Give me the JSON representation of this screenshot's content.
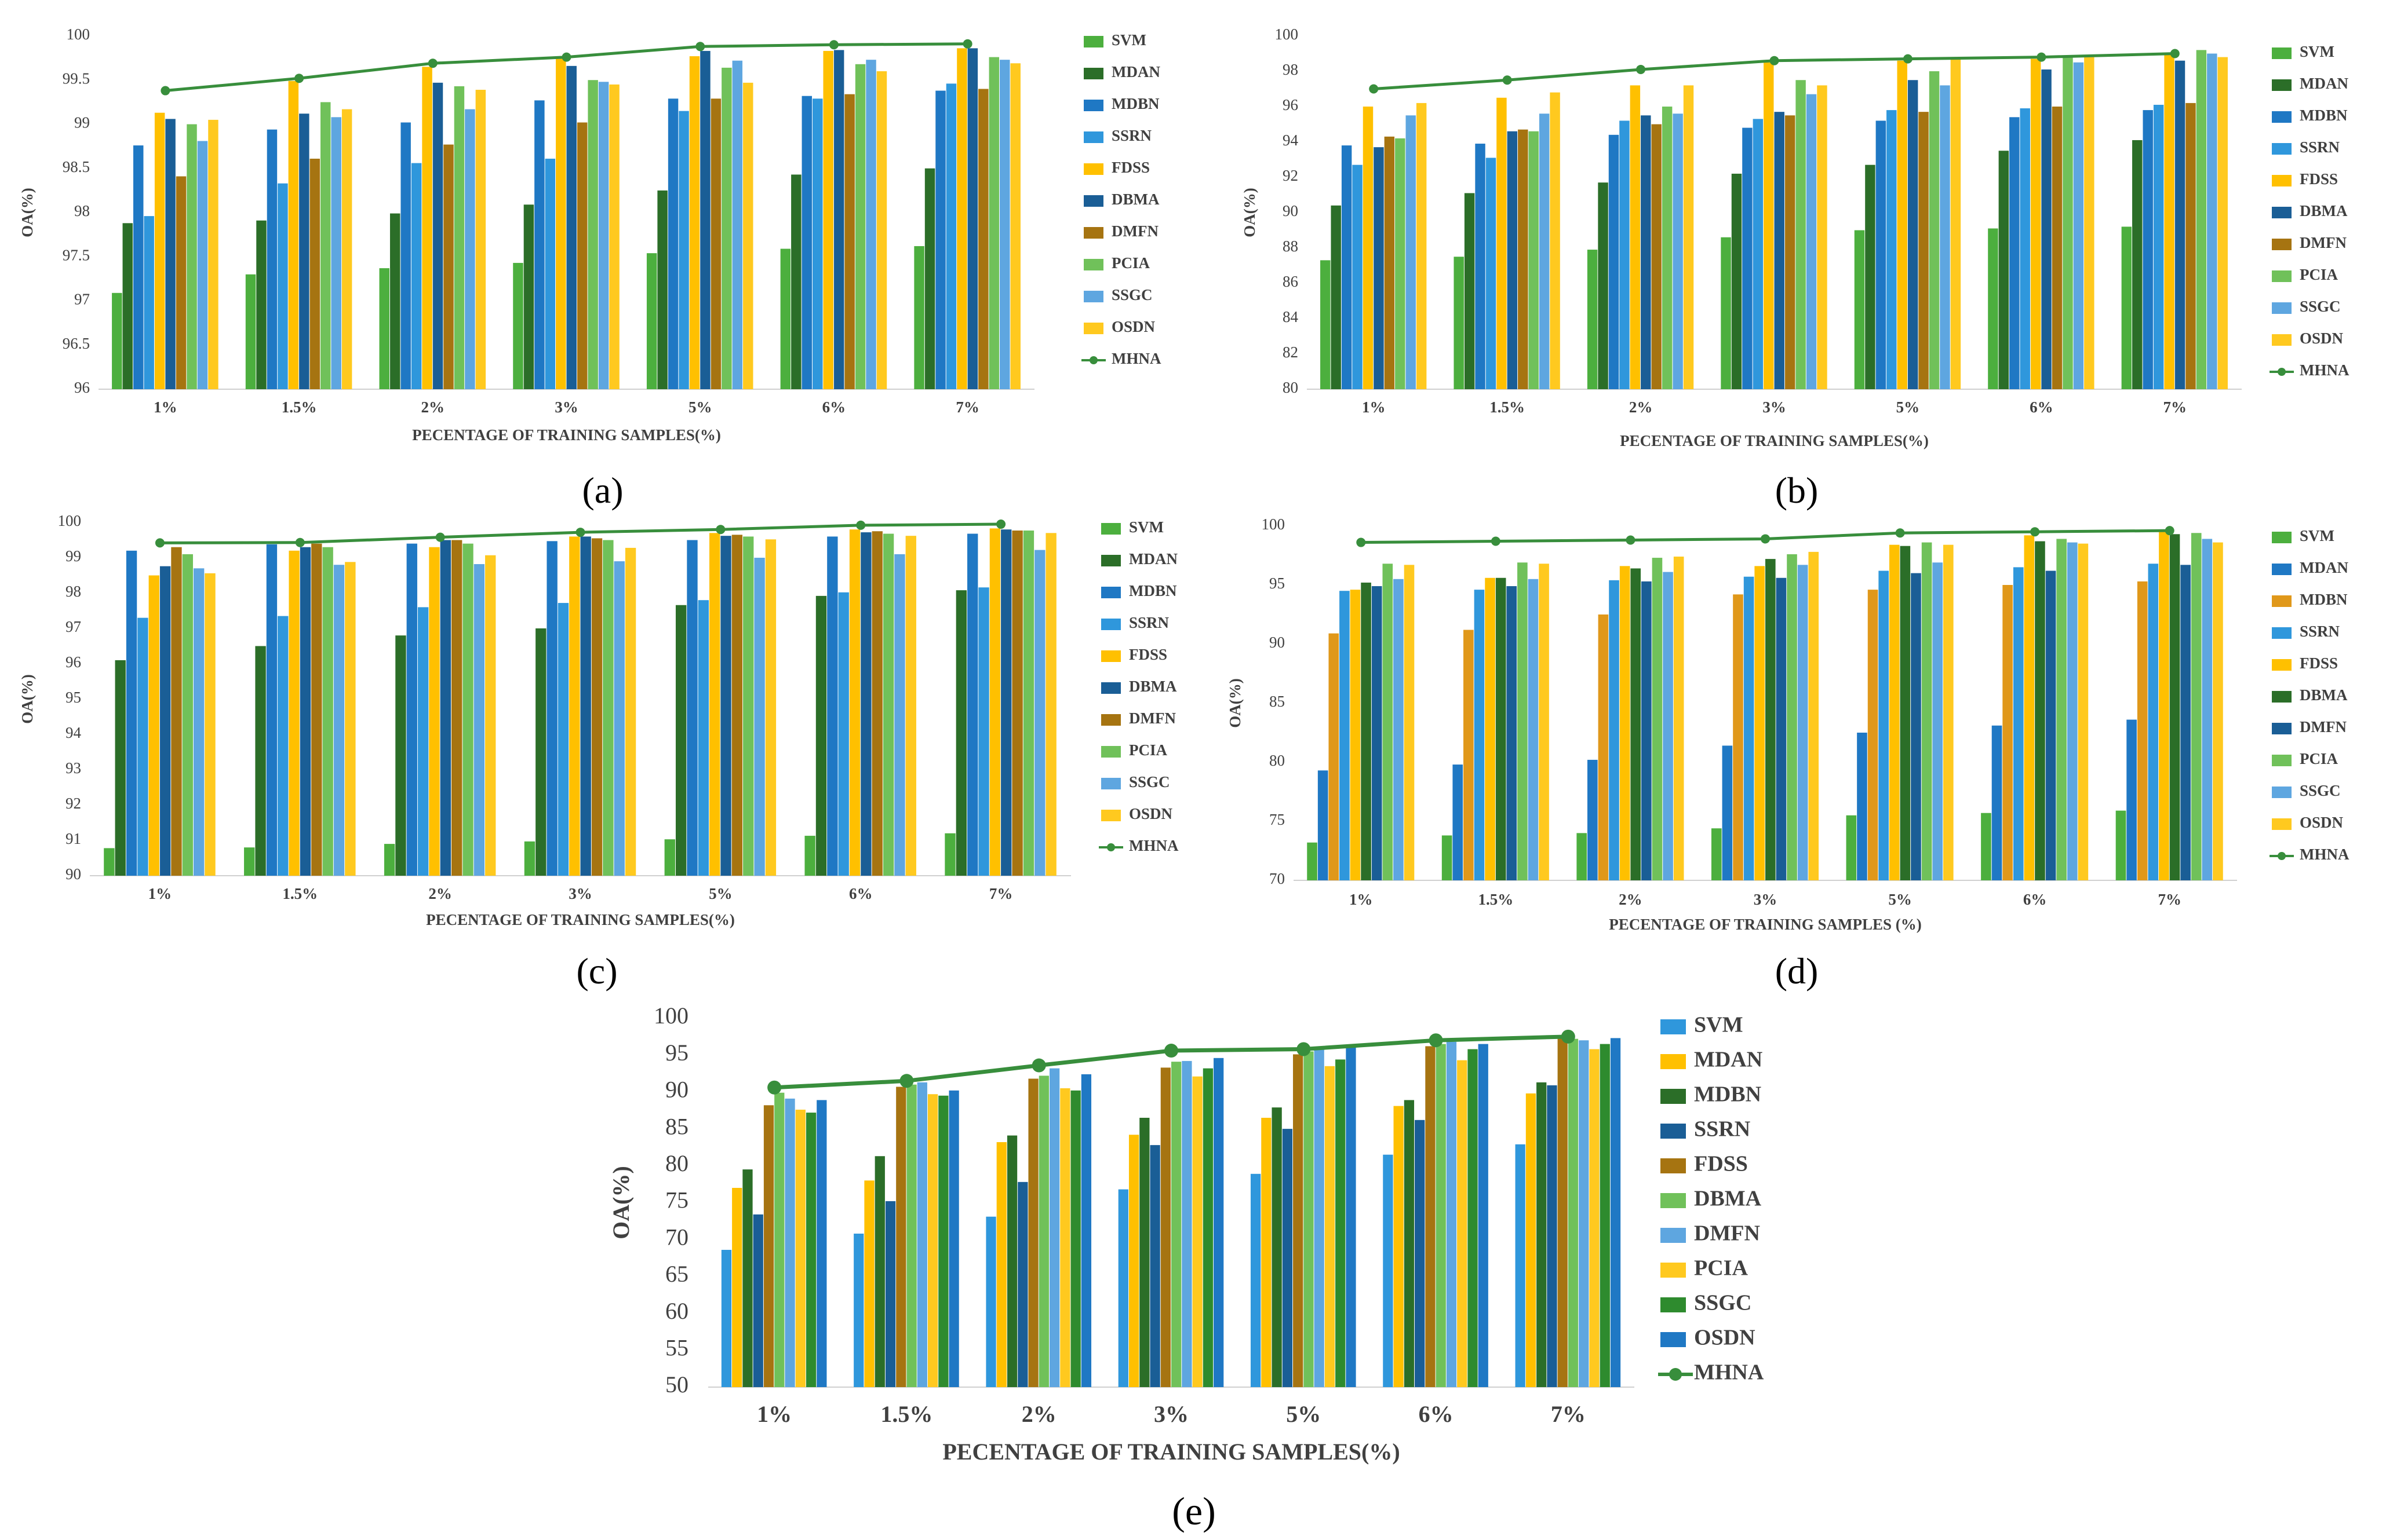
{
  "figure": {
    "panel_labels": [
      "(a)",
      "(b)",
      "(c)",
      "(d)",
      "(e)"
    ]
  },
  "chart_data": [
    {
      "id": "a",
      "type": "bar",
      "label": "(a)",
      "xlabel": "PECENTAGE OF TRAINING SAMPLES(%)",
      "ylabel": "OA(%)",
      "ylim": [
        96,
        100
      ],
      "yticks": [
        96,
        96.5,
        97,
        97.5,
        98,
        98.5,
        99,
        99.5,
        100
      ],
      "categories": [
        "1%",
        "1.5%",
        "2%",
        "3%",
        "5%",
        "6%",
        "7%"
      ],
      "series": [
        {
          "name": "SVM",
          "color": "#4caf3e",
          "values": [
            97.09,
            97.3,
            97.37,
            97.43,
            97.54,
            97.59,
            97.62
          ]
        },
        {
          "name": "MDAN",
          "color": "#2b6e28",
          "values": [
            97.88,
            97.91,
            97.99,
            98.09,
            98.25,
            98.43,
            98.5
          ]
        },
        {
          "name": "MDBN",
          "color": "#1f78c4",
          "values": [
            98.76,
            98.94,
            99.02,
            99.27,
            99.29,
            99.32,
            99.38
          ]
        },
        {
          "name": "SSRN",
          "color": "#2f97dc",
          "values": [
            97.96,
            98.33,
            98.56,
            98.61,
            99.15,
            99.29,
            99.46
          ]
        },
        {
          "name": "FDSS",
          "color": "#ffc000",
          "values": [
            99.13,
            99.49,
            99.65,
            99.75,
            99.77,
            99.83,
            99.86
          ]
        },
        {
          "name": "DBMA",
          "color": "#1a5e96",
          "values": [
            99.06,
            99.12,
            99.47,
            99.66,
            99.83,
            99.84,
            99.86
          ]
        },
        {
          "name": "DMFN",
          "color": "#a67411",
          "values": [
            98.41,
            98.61,
            98.77,
            99.02,
            99.29,
            99.34,
            99.4
          ]
        },
        {
          "name": "PCIA",
          "color": "#70c15a",
          "values": [
            99.0,
            99.25,
            99.43,
            99.5,
            99.64,
            99.68,
            99.76
          ]
        },
        {
          "name": "SSGC",
          "color": "#5ea6e0",
          "values": [
            98.81,
            99.08,
            99.17,
            99.48,
            99.72,
            99.73,
            99.73
          ]
        },
        {
          "name": "OSDN",
          "color": "#ffc91f",
          "values": [
            99.05,
            99.17,
            99.39,
            99.45,
            99.47,
            99.6,
            99.69
          ]
        }
      ],
      "line": {
        "name": "MHNA",
        "color": "#388e3c",
        "values": [
          99.38,
          99.52,
          99.69,
          99.76,
          99.88,
          99.9,
          99.91
        ]
      }
    },
    {
      "id": "b",
      "type": "bar",
      "label": "(b)",
      "xlabel": "PECENTAGE OF TRAINING SAMPLES(%)",
      "ylabel": "OA(%)",
      "ylim": [
        80,
        100
      ],
      "yticks": [
        80,
        82,
        84,
        86,
        88,
        90,
        92,
        94,
        96,
        98,
        100
      ],
      "categories": [
        "1%",
        "1.5%",
        "2%",
        "3%",
        "5%",
        "6%",
        "7%"
      ],
      "series": [
        {
          "name": "SVM",
          "color": "#4caf3e",
          "values": [
            87.3,
            87.5,
            87.9,
            88.6,
            89.0,
            89.1,
            89.2
          ]
        },
        {
          "name": "MDAN",
          "color": "#2b6e28",
          "values": [
            90.4,
            91.1,
            91.7,
            92.2,
            92.7,
            93.5,
            94.1
          ]
        },
        {
          "name": "MDBN",
          "color": "#1f78c4",
          "values": [
            93.8,
            93.9,
            94.4,
            94.8,
            95.2,
            95.4,
            95.8
          ]
        },
        {
          "name": "SSRN",
          "color": "#2f97dc",
          "values": [
            92.7,
            93.1,
            95.2,
            95.3,
            95.8,
            95.9,
            96.1
          ]
        },
        {
          "name": "FDSS",
          "color": "#ffc000",
          "values": [
            96.0,
            96.5,
            97.2,
            98.5,
            98.6,
            98.7,
            99.0
          ]
        },
        {
          "name": "DBMA",
          "color": "#1a5e96",
          "values": [
            93.7,
            94.6,
            95.5,
            95.7,
            97.5,
            98.1,
            98.6
          ]
        },
        {
          "name": "DMFN",
          "color": "#a67411",
          "values": [
            94.3,
            94.7,
            95.0,
            95.5,
            95.7,
            96.0,
            96.2
          ]
        },
        {
          "name": "PCIA",
          "color": "#70c15a",
          "values": [
            94.2,
            94.6,
            96.0,
            97.5,
            98.0,
            98.8,
            99.2
          ]
        },
        {
          "name": "SSGC",
          "color": "#5ea6e0",
          "values": [
            95.5,
            95.6,
            95.6,
            96.7,
            97.2,
            98.5,
            99.0
          ]
        },
        {
          "name": "OSDN",
          "color": "#ffc91f",
          "values": [
            96.2,
            96.8,
            97.2,
            97.2,
            98.7,
            98.8,
            98.8
          ]
        }
      ],
      "line": {
        "name": "MHNA",
        "color": "#388e3c",
        "values": [
          97.0,
          97.5,
          98.1,
          98.6,
          98.7,
          98.8,
          99.0
        ]
      }
    },
    {
      "id": "c",
      "type": "bar",
      "label": "(c)",
      "xlabel": "PECENTAGE OF TRAINING SAMPLES(%)",
      "ylabel": "OA(%)",
      "ylim": [
        90,
        100
      ],
      "yticks": [
        90,
        91,
        92,
        93,
        94,
        95,
        96,
        97,
        98,
        99,
        100
      ],
      "categories": [
        "1%",
        "1.5%",
        "2%",
        "3%",
        "5%",
        "6%",
        "7%"
      ],
      "series": [
        {
          "name": "SVM",
          "color": "#4caf3e",
          "values": [
            90.78,
            90.8,
            90.9,
            90.97,
            91.03,
            91.13,
            91.2
          ]
        },
        {
          "name": "MDAN",
          "color": "#2b6e28",
          "values": [
            96.1,
            96.5,
            96.8,
            97.0,
            97.66,
            97.92,
            98.08
          ]
        },
        {
          "name": "MDBN",
          "color": "#1f78c4",
          "values": [
            99.2,
            99.38,
            99.4,
            99.47,
            99.5,
            99.6,
            99.68
          ]
        },
        {
          "name": "SSRN",
          "color": "#2f97dc",
          "values": [
            97.3,
            97.35,
            97.6,
            97.72,
            97.8,
            98.02,
            98.16
          ]
        },
        {
          "name": "FDSS",
          "color": "#ffc000",
          "values": [
            98.5,
            99.2,
            99.3,
            99.6,
            99.7,
            99.8,
            99.83
          ]
        },
        {
          "name": "DBMA",
          "color": "#1a5e96",
          "values": [
            98.76,
            99.3,
            99.5,
            99.6,
            99.62,
            99.72,
            99.8
          ]
        },
        {
          "name": "DMFN",
          "color": "#a67411",
          "values": [
            99.3,
            99.4,
            99.5,
            99.55,
            99.65,
            99.75,
            99.77
          ]
        },
        {
          "name": "PCIA",
          "color": "#70c15a",
          "values": [
            99.1,
            99.3,
            99.4,
            99.5,
            99.6,
            99.68,
            99.77
          ]
        },
        {
          "name": "SSGC",
          "color": "#5ea6e0",
          "values": [
            98.7,
            98.8,
            98.82,
            98.9,
            99.0,
            99.1,
            99.22
          ]
        },
        {
          "name": "OSDN",
          "color": "#ffc91f",
          "values": [
            98.56,
            98.88,
            99.07,
            99.28,
            99.52,
            99.62,
            99.7
          ]
        }
      ],
      "line": {
        "name": "MHNA",
        "color": "#388e3c",
        "values": [
          99.42,
          99.43,
          99.58,
          99.72,
          99.8,
          99.92,
          99.95
        ]
      }
    },
    {
      "id": "d",
      "type": "bar",
      "label": "(d)",
      "xlabel": "PECENTAGE OF TRAINING SAMPLES (%)",
      "ylabel": "OA(%)",
      "ylim": [
        70,
        100
      ],
      "yticks": [
        70,
        75,
        80,
        85,
        90,
        95,
        100
      ],
      "categories": [
        "1%",
        "1.5%",
        "2%",
        "3%",
        "5%",
        "6%",
        "7%"
      ],
      "series": [
        {
          "name": "SVM",
          "color": "#4caf3e",
          "values": [
            73.2,
            73.8,
            74.0,
            74.4,
            75.5,
            75.7,
            75.9
          ]
        },
        {
          "name": "MDAN",
          "color": "#1f78c4",
          "values": [
            79.3,
            79.8,
            80.2,
            81.4,
            82.5,
            83.1,
            83.6
          ]
        },
        {
          "name": "MDBN",
          "color": "#e0981a",
          "values": [
            90.9,
            91.2,
            92.5,
            94.2,
            94.6,
            95.0,
            95.3
          ]
        },
        {
          "name": "SSRN",
          "color": "#2f97dc",
          "values": [
            94.5,
            94.6,
            95.4,
            95.7,
            96.2,
            96.5,
            96.8
          ]
        },
        {
          "name": "FDSS",
          "color": "#ffc000",
          "values": [
            94.6,
            95.6,
            96.6,
            96.6,
            98.4,
            99.2,
            99.6
          ]
        },
        {
          "name": "DBMA",
          "color": "#2b6e28",
          "values": [
            95.2,
            95.6,
            96.4,
            97.2,
            98.3,
            98.7,
            99.3
          ]
        },
        {
          "name": "DMFN",
          "color": "#1a5e96",
          "values": [
            94.9,
            94.9,
            95.3,
            95.6,
            96.0,
            96.2,
            96.7
          ]
        },
        {
          "name": "PCIA",
          "color": "#70c15a",
          "values": [
            96.8,
            96.9,
            97.3,
            97.6,
            98.6,
            98.9,
            99.4
          ]
        },
        {
          "name": "SSGC",
          "color": "#5ea6e0",
          "values": [
            95.5,
            95.5,
            96.1,
            96.7,
            96.9,
            98.6,
            98.9
          ]
        },
        {
          "name": "OSDN",
          "color": "#ffc91f",
          "values": [
            96.7,
            96.8,
            97.4,
            97.8,
            98.4,
            98.5,
            98.6
          ]
        }
      ],
      "line": {
        "name": "MHNA",
        "color": "#388e3c",
        "values": [
          98.6,
          98.7,
          98.8,
          98.9,
          99.4,
          99.5,
          99.6
        ]
      }
    },
    {
      "id": "e",
      "type": "bar",
      "label": "(e)",
      "xlabel": "PECENTAGE OF TRAINING SAMPLES(%)",
      "ylabel": "OA(%)",
      "ylim": [
        50,
        100
      ],
      "yticks": [
        50,
        55,
        60,
        65,
        70,
        75,
        80,
        85,
        90,
        95,
        100
      ],
      "categories": [
        "1%",
        "1.5%",
        "2%",
        "3%",
        "5%",
        "6%",
        "7%"
      ],
      "series": [
        {
          "name": "SVM",
          "color": "#2f97dc",
          "values": [
            68.6,
            70.8,
            73.1,
            76.8,
            78.9,
            81.5,
            82.9
          ]
        },
        {
          "name": "MDAN",
          "color": "#ffc000",
          "values": [
            77.0,
            78.0,
            83.2,
            84.2,
            86.5,
            88.1,
            89.8
          ]
        },
        {
          "name": "MDBN",
          "color": "#2b6e28",
          "values": [
            79.5,
            81.3,
            84.1,
            86.5,
            87.9,
            88.9,
            91.3
          ]
        },
        {
          "name": "SSRN",
          "color": "#1a5e96",
          "values": [
            73.4,
            75.2,
            77.8,
            82.8,
            85.0,
            86.2,
            90.9
          ]
        },
        {
          "name": "FDSS",
          "color": "#a67411",
          "values": [
            88.2,
            90.7,
            91.8,
            93.3,
            95.1,
            96.2,
            97.4
          ]
        },
        {
          "name": "DBMA",
          "color": "#70c15a",
          "values": [
            89.9,
            91.0,
            92.2,
            94.1,
            95.5,
            96.5,
            97.2
          ]
        },
        {
          "name": "DMFN",
          "color": "#5ea6e0",
          "values": [
            89.1,
            91.3,
            93.2,
            94.2,
            95.8,
            96.8,
            97.0
          ]
        },
        {
          "name": "PCIA",
          "color": "#ffc91f",
          "values": [
            87.6,
            89.7,
            90.5,
            92.1,
            93.5,
            94.3,
            95.8
          ]
        },
        {
          "name": "SSGC",
          "color": "#2e8b2e",
          "values": [
            87.2,
            89.5,
            90.2,
            93.2,
            94.4,
            95.8,
            96.5
          ]
        },
        {
          "name": "OSDN",
          "color": "#1f78c4",
          "values": [
            88.9,
            90.2,
            92.4,
            94.6,
            96.1,
            96.5,
            97.3
          ]
        }
      ],
      "line": {
        "name": "MHNA",
        "color": "#388e3c",
        "values": [
          90.6,
          91.5,
          93.6,
          95.6,
          95.8,
          97.0,
          97.5
        ]
      }
    }
  ]
}
